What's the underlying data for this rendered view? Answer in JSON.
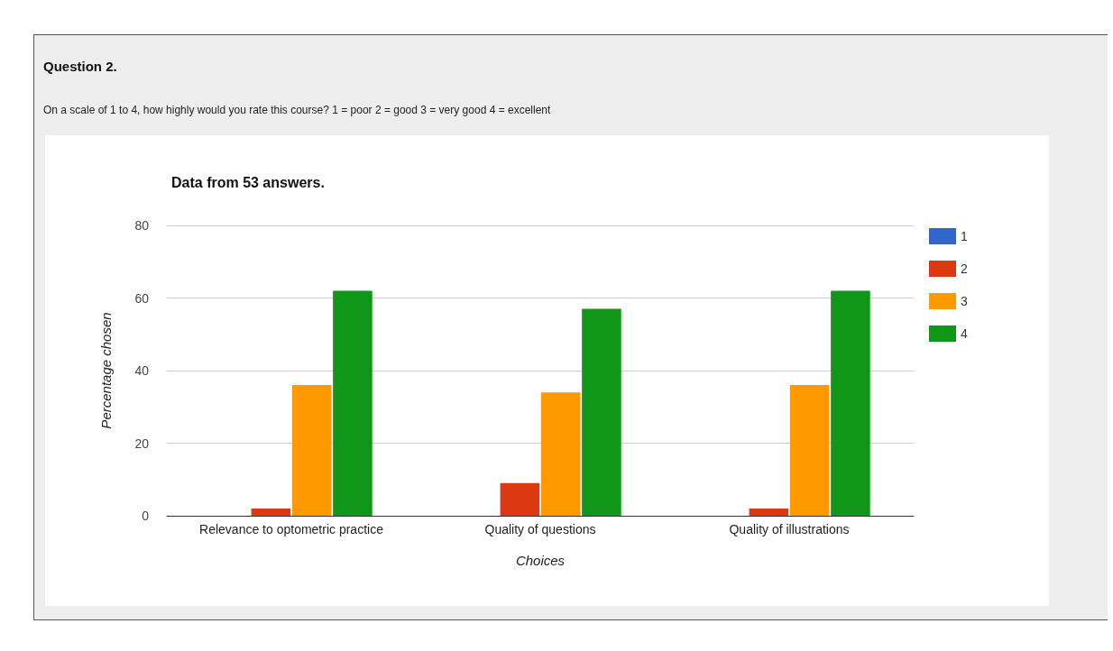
{
  "chart_data": {
    "type": "bar",
    "title": "Question 2.",
    "subtitle": "On a scale of 1 to 4, how highly would you rate this course? 1 = poor 2 = good 3 = very good 4 = excellent",
    "annotations": [
      "Data from 53 answers."
    ],
    "xlabel": "Choices",
    "ylabel": "Percentage chosen",
    "categories": [
      "Relevance to optometric practice",
      "Quality of questions",
      "Quality of illustrations"
    ],
    "series": [
      {
        "name": "1",
        "color": "#3366cc",
        "values": [
          0,
          0,
          0
        ]
      },
      {
        "name": "2",
        "color": "#dc3912",
        "values": [
          2,
          9,
          2
        ]
      },
      {
        "name": "3",
        "color": "#ff9900",
        "values": [
          36,
          34,
          36
        ]
      },
      {
        "name": "4",
        "color": "#109618",
        "values": [
          62,
          57,
          62
        ]
      }
    ],
    "ylim": [
      0,
      80
    ],
    "yticks": [
      0,
      20,
      40,
      60,
      80
    ],
    "grid": "y",
    "legend": "top right"
  }
}
